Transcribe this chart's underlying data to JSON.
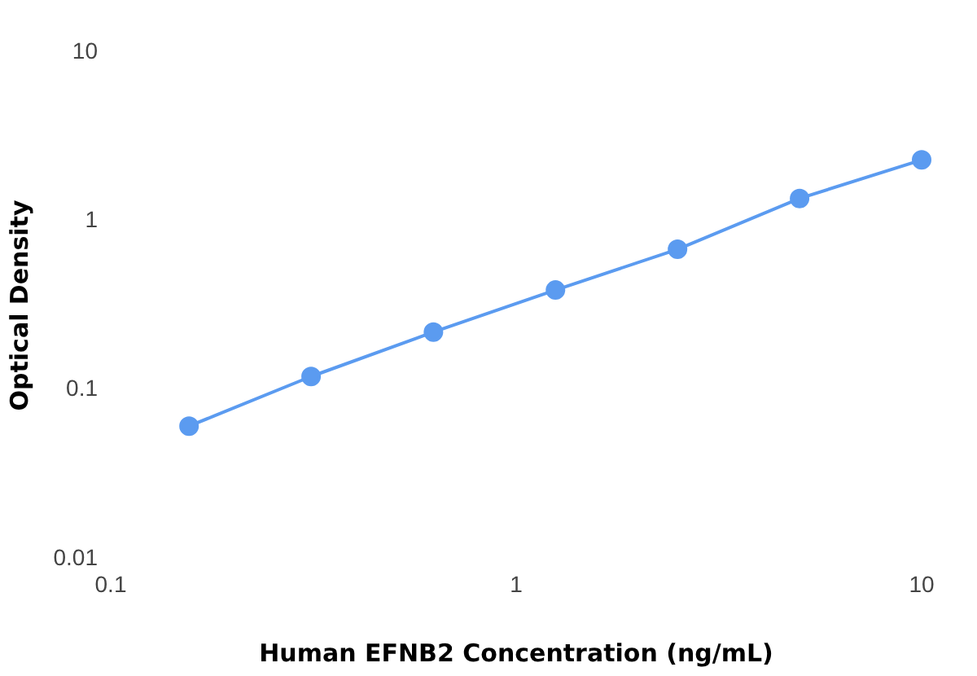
{
  "chart_data": {
    "type": "line",
    "xlabel": "Human EFNB2 Concentration (ng/mL)",
    "ylabel": "Optical Density",
    "x": [
      0.156,
      0.312,
      0.625,
      1.25,
      2.5,
      5,
      10
    ],
    "series": [
      {
        "color": "#5b9bf0",
        "values": [
          0.061,
          0.12,
          0.22,
          0.39,
          0.68,
          1.36,
          2.3
        ]
      }
    ],
    "log": "xy",
    "xlim": [
      0.1,
      10
    ],
    "xticks": [
      0.1,
      1,
      10
    ],
    "ylim": [
      0.01,
      10
    ],
    "yticks": [
      0.01,
      0.1,
      1,
      10
    ],
    "grid": false,
    "legend": false,
    "marker": "circle",
    "line_style": "solid"
  }
}
